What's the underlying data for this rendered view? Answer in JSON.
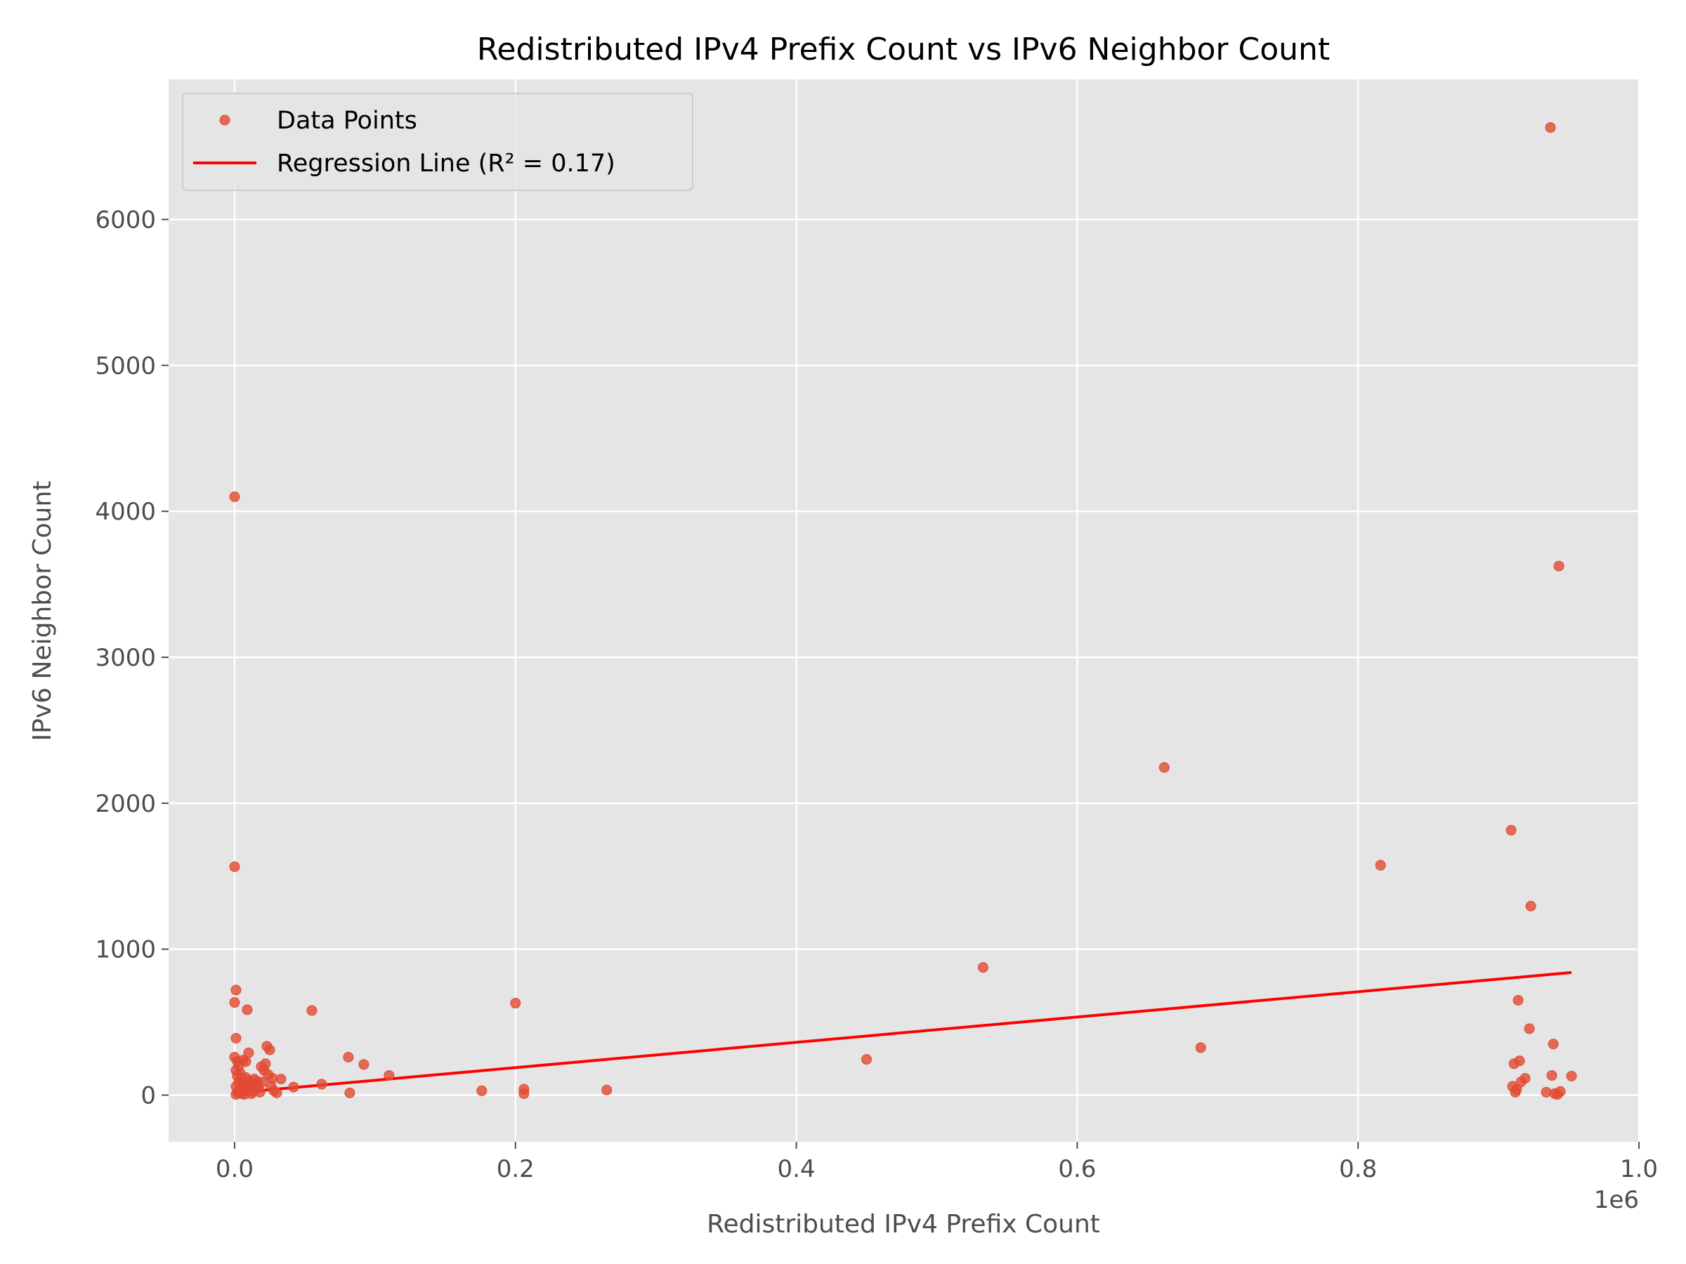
{
  "chart_data": {
    "type": "scatter",
    "title": "Redistributed IPv4 Prefix Count vs IPv6 Neighbor Count",
    "xlabel": "Redistributed IPv4 Prefix Count",
    "ylabel": "IPv6 Neighbor Count",
    "x_offset_label": "1e6",
    "xlim": [
      -0.047,
      1.0
    ],
    "ylim": [
      -320,
      6960
    ],
    "x_ticks": [
      0.0,
      0.2,
      0.4,
      0.6,
      0.8,
      1.0
    ],
    "x_tick_labels": [
      "0.0",
      "0.2",
      "0.4",
      "0.6",
      "0.8",
      "1.0"
    ],
    "y_ticks": [
      0,
      1000,
      2000,
      3000,
      4000,
      5000,
      6000
    ],
    "y_tick_labels": [
      "0",
      "1000",
      "2000",
      "3000",
      "4000",
      "5000",
      "6000"
    ],
    "grid": true,
    "legend_position": "top-left",
    "series": [
      {
        "name": "Data Points",
        "kind": "scatter",
        "color": "#E24A33",
        "points": [
          [
            0.0,
            4100
          ],
          [
            0.0,
            1565
          ],
          [
            0.001,
            720
          ],
          [
            0.0,
            635
          ],
          [
            0.001,
            390
          ],
          [
            0.0,
            260
          ],
          [
            0.002,
            230
          ],
          [
            0.003,
            200
          ],
          [
            0.001,
            170
          ],
          [
            0.004,
            150
          ],
          [
            0.002,
            130
          ],
          [
            0.005,
            110
          ],
          [
            0.003,
            90
          ],
          [
            0.006,
            80
          ],
          [
            0.001,
            60
          ],
          [
            0.004,
            40
          ],
          [
            0.007,
            30
          ],
          [
            0.002,
            20
          ],
          [
            0.005,
            10
          ],
          [
            0.001,
            5
          ],
          [
            0.008,
            120
          ],
          [
            0.01,
            100
          ],
          [
            0.012,
            80
          ],
          [
            0.009,
            60
          ],
          [
            0.011,
            40
          ],
          [
            0.013,
            25
          ],
          [
            0.006,
            240
          ],
          [
            0.009,
            585
          ],
          [
            0.01,
            290
          ],
          [
            0.008,
            230
          ],
          [
            0.014,
            110
          ],
          [
            0.016,
            95
          ],
          [
            0.015,
            70
          ],
          [
            0.017,
            50
          ],
          [
            0.018,
            20
          ],
          [
            0.019,
            195
          ],
          [
            0.022,
            215
          ],
          [
            0.023,
            335
          ],
          [
            0.025,
            310
          ],
          [
            0.021,
            170
          ],
          [
            0.024,
            140
          ],
          [
            0.027,
            115
          ],
          [
            0.02,
            90
          ],
          [
            0.026,
            60
          ],
          [
            0.028,
            30
          ],
          [
            0.03,
            15
          ],
          [
            0.033,
            110
          ],
          [
            0.042,
            55
          ],
          [
            0.012,
            10
          ],
          [
            0.007,
            5
          ],
          [
            0.055,
            580
          ],
          [
            0.062,
            75
          ],
          [
            0.081,
            260
          ],
          [
            0.082,
            15
          ],
          [
            0.092,
            210
          ],
          [
            0.11,
            135
          ],
          [
            0.176,
            30
          ],
          [
            0.2,
            630
          ],
          [
            0.206,
            40
          ],
          [
            0.206,
            10
          ],
          [
            0.265,
            35
          ],
          [
            0.45,
            245
          ],
          [
            0.533,
            875
          ],
          [
            0.662,
            2245
          ],
          [
            0.688,
            325
          ],
          [
            0.816,
            1575
          ],
          [
            0.909,
            1815
          ],
          [
            0.91,
            60
          ],
          [
            0.911,
            215
          ],
          [
            0.912,
            20
          ],
          [
            0.913,
            40
          ],
          [
            0.914,
            650
          ],
          [
            0.915,
            235
          ],
          [
            0.916,
            90
          ],
          [
            0.919,
            115
          ],
          [
            0.922,
            455
          ],
          [
            0.923,
            1295
          ],
          [
            0.934,
            20
          ],
          [
            0.937,
            6630
          ],
          [
            0.938,
            135
          ],
          [
            0.939,
            350
          ],
          [
            0.94,
            10
          ],
          [
            0.942,
            5
          ],
          [
            0.943,
            3625
          ],
          [
            0.944,
            25
          ],
          [
            0.952,
            130
          ]
        ]
      },
      {
        "name": "Regression Line (R² = 0.17)",
        "kind": "line",
        "color": "#FF0000",
        "x": [
          0.0,
          0.952
        ],
        "y": [
          15,
          840
        ]
      }
    ]
  }
}
